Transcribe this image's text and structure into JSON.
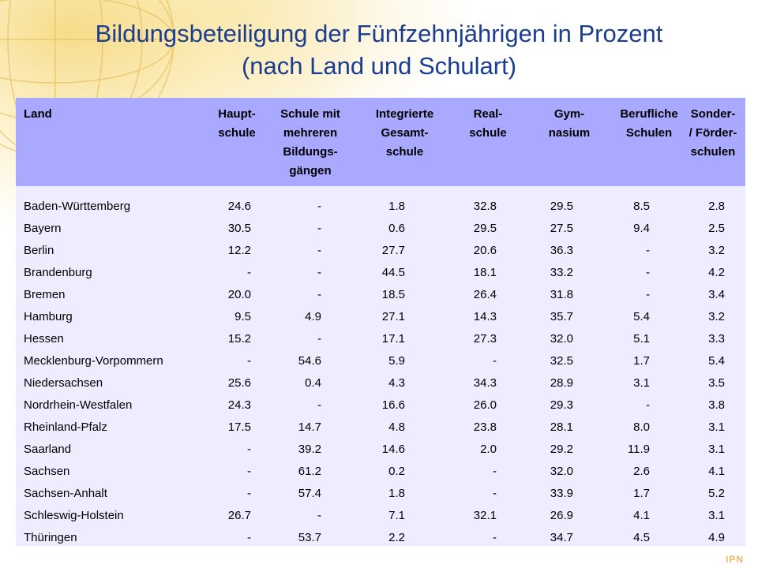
{
  "title": {
    "line1": "Bildungsbeteiligung der Fünfzehnjährigen in Prozent",
    "line2": "(nach Land und Schulart)"
  },
  "table": {
    "headers": [
      [
        "Land"
      ],
      [
        "Haupt-",
        "schule"
      ],
      [
        "Schule mit",
        "mehreren",
        "Bildungs-",
        "gängen"
      ],
      [
        "Integrierte",
        "Gesamt-",
        "schule"
      ],
      [
        "Real-",
        "schule"
      ],
      [
        "Gym-",
        "nasium"
      ],
      [
        "Berufliche",
        "Schulen"
      ],
      [
        "Sonder-",
        "/ Förder-",
        "schulen"
      ]
    ],
    "rows": [
      [
        "Baden-Württemberg",
        "24.6",
        "-",
        "1.8",
        "32.8",
        "29.5",
        "8.5",
        "2.8"
      ],
      [
        "Bayern",
        "30.5",
        "-",
        "0.6",
        "29.5",
        "27.5",
        "9.4",
        "2.5"
      ],
      [
        "Berlin",
        "12.2",
        "-",
        "27.7",
        "20.6",
        "36.3",
        "-",
        "3.2"
      ],
      [
        "Brandenburg",
        "-",
        "-",
        "44.5",
        "18.1",
        "33.2",
        "-",
        "4.2"
      ],
      [
        "Bremen",
        "20.0",
        "-",
        "18.5",
        "26.4",
        "31.8",
        "-",
        "3.4"
      ],
      [
        "Hamburg",
        "9.5",
        "4.9",
        "27.1",
        "14.3",
        "35.7",
        "5.4",
        "3.2"
      ],
      [
        "Hessen",
        "15.2",
        "-",
        "17.1",
        "27.3",
        "32.0",
        "5.1",
        "3.3"
      ],
      [
        "Mecklenburg-Vorpommern",
        "-",
        "54.6",
        "5.9",
        "-",
        "32.5",
        "1.7",
        "5.4"
      ],
      [
        "Niedersachsen",
        "25.6",
        "0.4",
        "4.3",
        "34.3",
        "28.9",
        "3.1",
        "3.5"
      ],
      [
        "Nordrhein-Westfalen",
        "24.3",
        "-",
        "16.6",
        "26.0",
        "29.3",
        "-",
        "3.8"
      ],
      [
        "Rheinland-Pfalz",
        "17.5",
        "14.7",
        "4.8",
        "23.8",
        "28.1",
        "8.0",
        "3.1"
      ],
      [
        "Saarland",
        "-",
        "39.2",
        "14.6",
        "2.0",
        "29.2",
        "11.9",
        "3.1"
      ],
      [
        "Sachsen",
        "-",
        "61.2",
        "0.2",
        "-",
        "32.0",
        "2.6",
        "4.1"
      ],
      [
        "Sachsen-Anhalt",
        "-",
        "57.4",
        "1.8",
        "-",
        "33.9",
        "1.7",
        "5.2"
      ],
      [
        "Schleswig-Holstein",
        "26.7",
        "-",
        "7.1",
        "32.1",
        "26.9",
        "4.1",
        "3.1"
      ],
      [
        "Thüringen",
        "-",
        "53.7",
        "2.2",
        "-",
        "34.7",
        "4.5",
        "4.9"
      ]
    ]
  },
  "logo_text": "IPN",
  "colors": {
    "title": "#1a3d8f",
    "header_bg": "#a9a9ff",
    "body_bg": "#eeecff",
    "glow": "#f5d778"
  }
}
